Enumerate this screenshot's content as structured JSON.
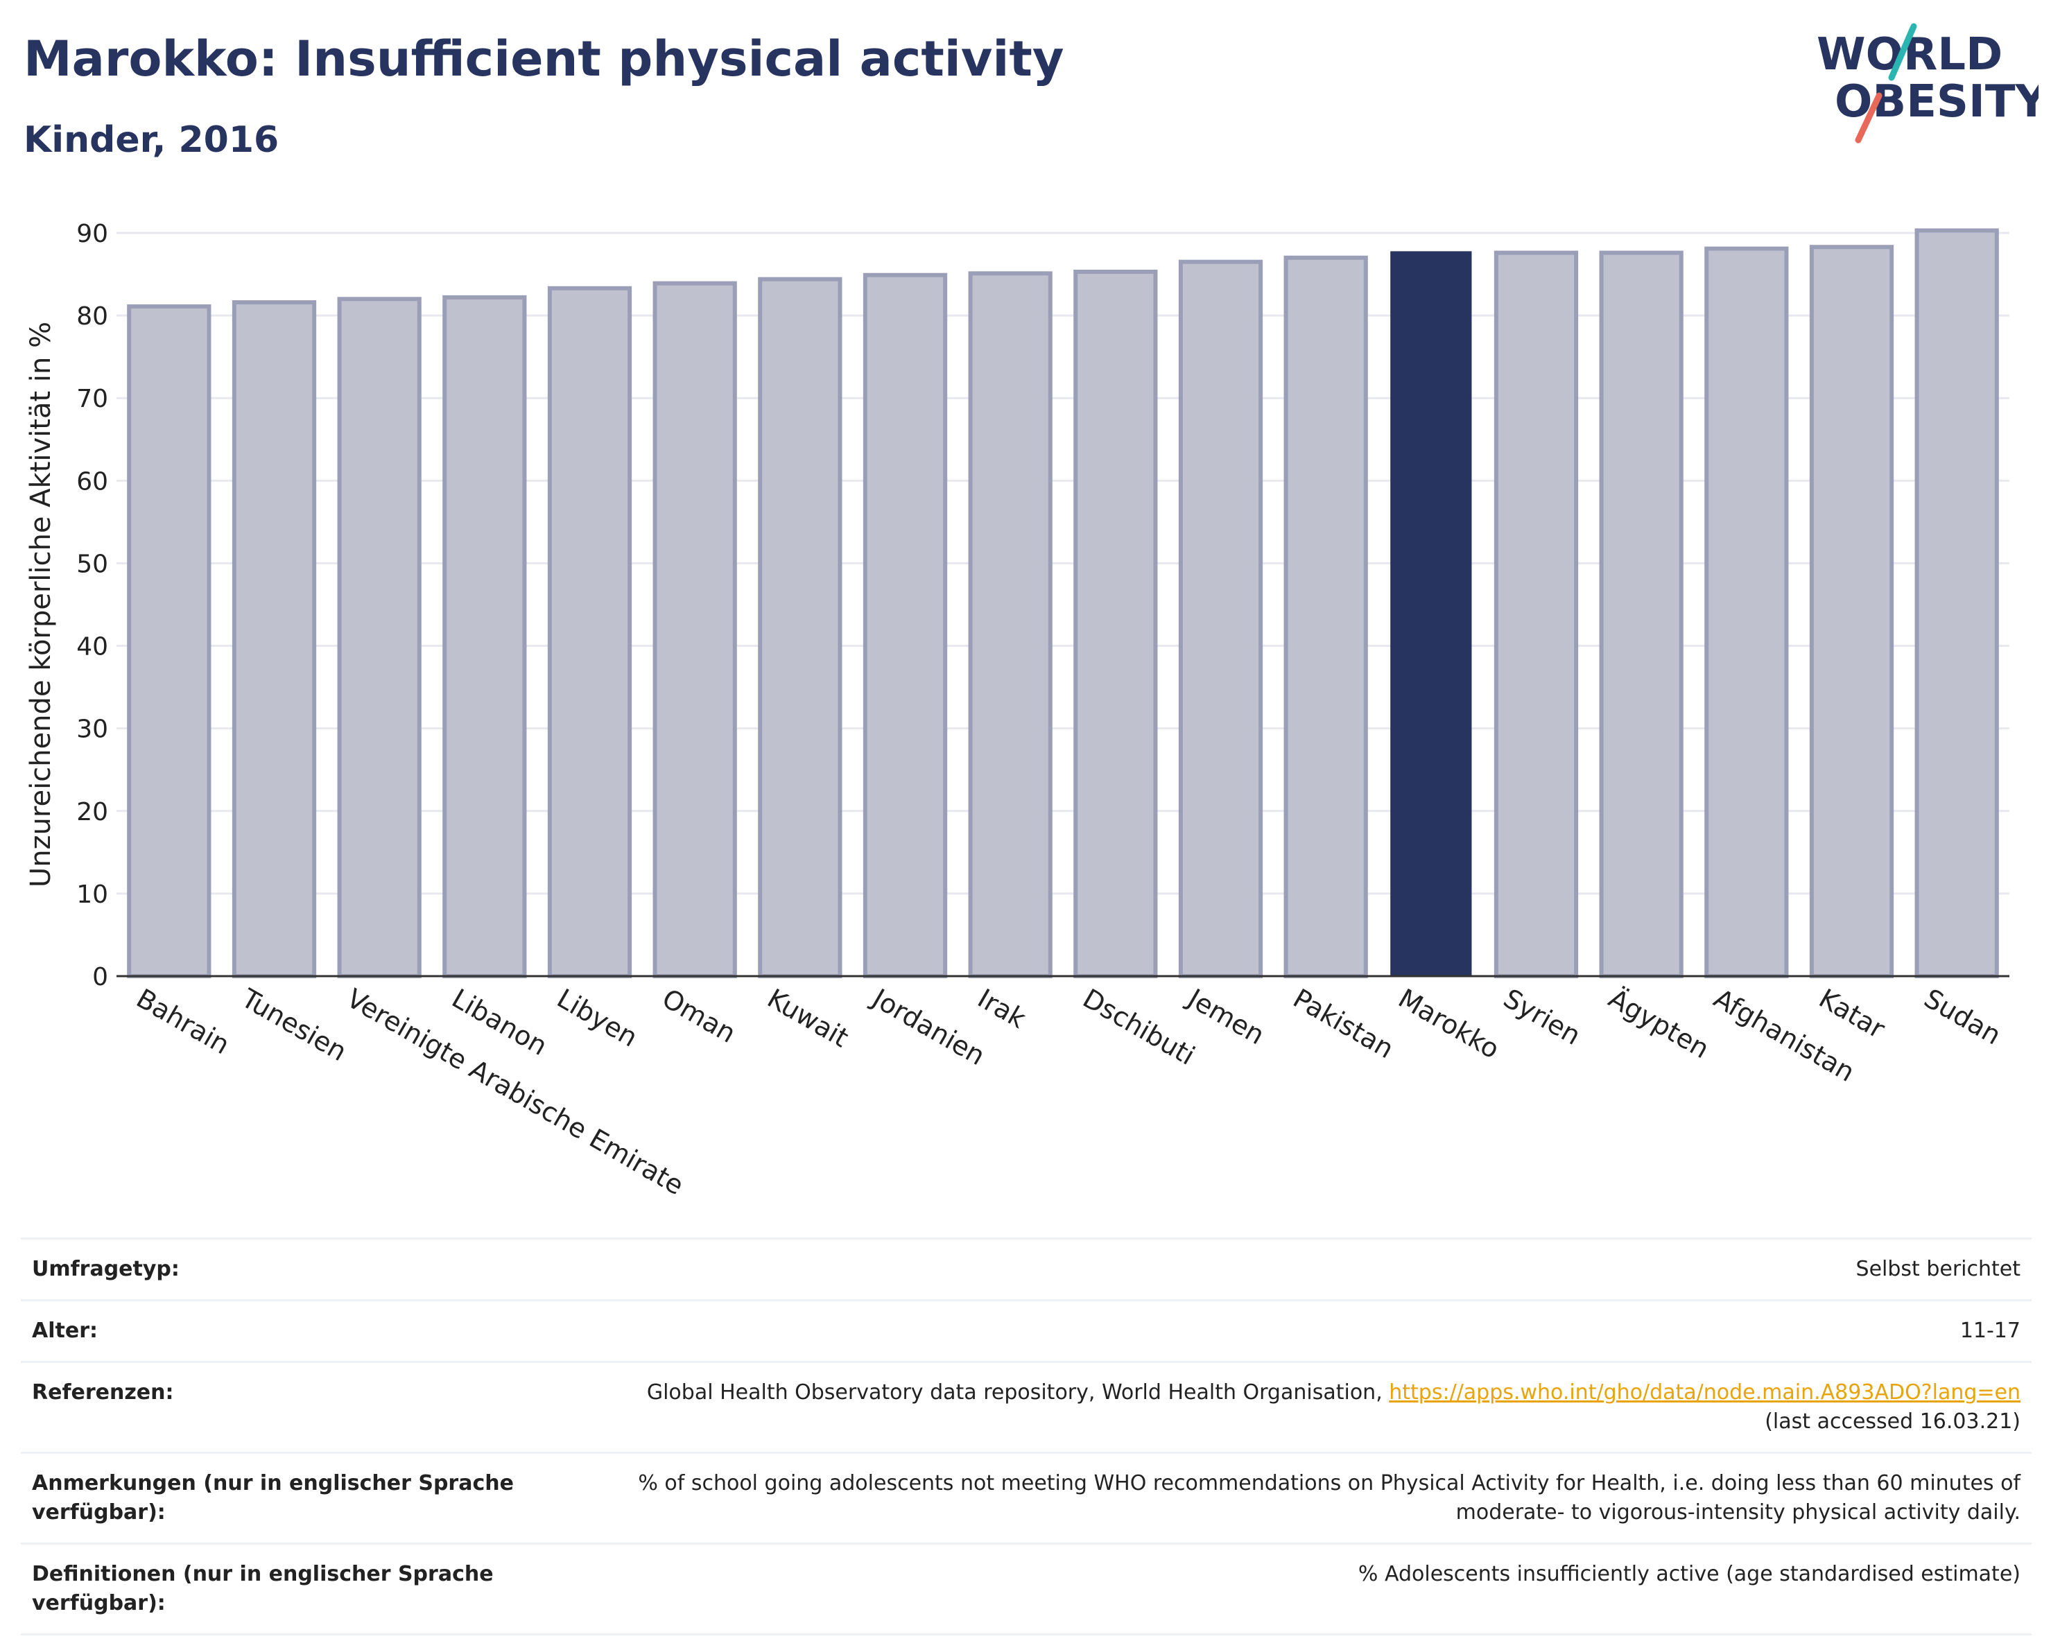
{
  "header": {
    "title": "Marokko: Insufficient physical activity",
    "subtitle": "Kinder, 2016"
  },
  "logo": {
    "line1": "WORLD",
    "line2": "OBESITY",
    "accent_teal": "#2ab5b0",
    "accent_red": "#e8685a"
  },
  "colors": {
    "highlight": "#283460",
    "bar": "#bfc1cf",
    "bar_stroke": "#9a9fb7"
  },
  "chart_data": {
    "type": "bar",
    "categories": [
      "Bahrain",
      "Tunesien",
      "Vereinigte Arabische Emirate",
      "Libanon",
      "Libyen",
      "Oman",
      "Kuwait",
      "Jordanien",
      "Irak",
      "Dschibuti",
      "Jemen",
      "Pakistan",
      "Marokko",
      "Syrien",
      "Ägypten",
      "Afghanistan",
      "Katar",
      "Sudan"
    ],
    "values": [
      81.1,
      81.6,
      82.0,
      82.2,
      83.3,
      83.9,
      84.4,
      84.9,
      85.1,
      85.3,
      86.5,
      87.0,
      87.7,
      87.6,
      87.6,
      88.1,
      88.3,
      90.3
    ],
    "highlight": "Marokko",
    "ylabel": "Unzureichende körperliche Aktivität in %",
    "yticks": [
      0,
      10,
      20,
      30,
      40,
      50,
      60,
      70,
      80,
      90
    ],
    "ylim": [
      0,
      95
    ],
    "grid": true
  },
  "meta": {
    "survey_label": "Umfragetyp:",
    "survey_value": "Selbst berichtet",
    "age_label": "Alter:",
    "age_value": "11-17",
    "refs_label": "Referenzen:",
    "refs_text": "Global Health Observatory data repository, World Health Organisation, ",
    "refs_link": "https://apps.who.int/gho/data/node.main.A893ADO?lang=en",
    "refs_accessed": "(last accessed 16.03.21)",
    "notes_label": "Anmerkungen (nur in englischer Sprache verfügbar):",
    "notes_value": "% of school going adolescents not meeting WHO recommendations on Physical Activity for Health, i.e. doing less than 60 minutes of moderate- to vigorous-intensity physical activity daily.",
    "defs_label": "Definitionen (nur in englischer Sprache verfügbar):",
    "defs_value": "% Adolescents insufficiently active (age standardised estimate)"
  }
}
